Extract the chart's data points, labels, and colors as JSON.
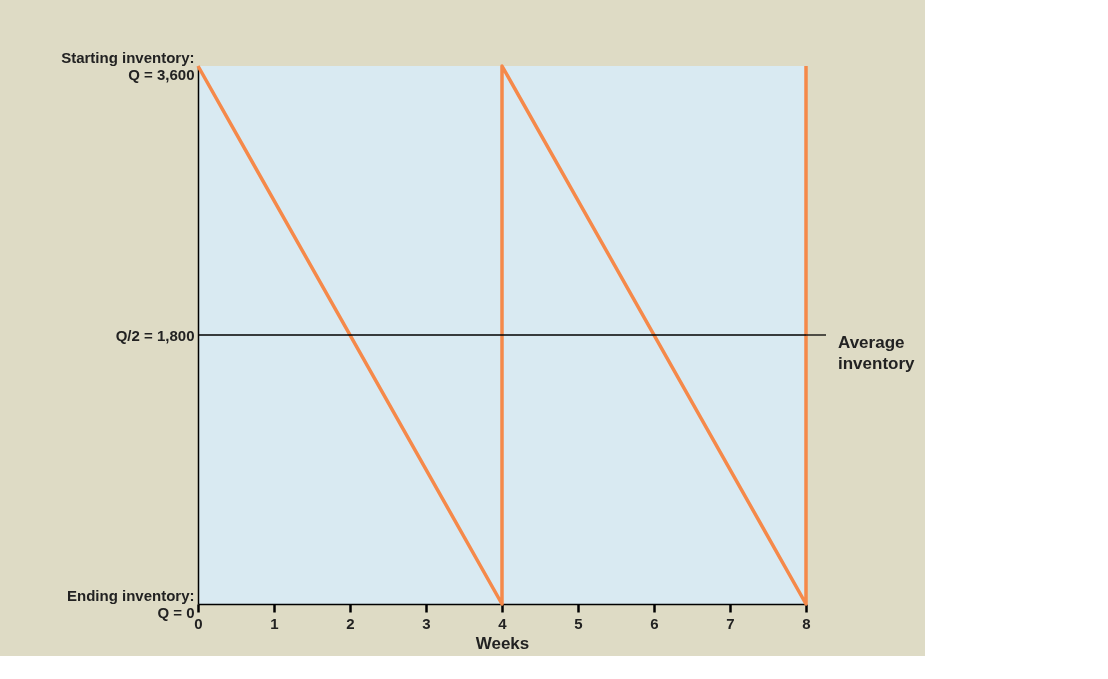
{
  "chart_data": {
    "type": "line",
    "x": [
      0,
      4,
      4,
      8,
      8
    ],
    "series": [
      {
        "color": "#f5894a",
        "values": [
          3600,
          0,
          3600,
          0,
          3600
        ]
      }
    ],
    "xlabel": "Weeks",
    "xlim": [
      0,
      8
    ],
    "xticks": [
      0,
      1,
      2,
      3,
      4,
      5,
      6,
      7,
      8
    ],
    "ylim": [
      0,
      3600
    ],
    "yticks": [
      {
        "value": 0,
        "label": "Ending inventory:\nQ = 0"
      },
      {
        "value": 1800,
        "label": "Q/2 = 1,800"
      },
      {
        "value": 3600,
        "label": "Starting inventory:\nQ = 3,600"
      }
    ],
    "ref_lines": [
      {
        "axis": "y",
        "value": 1800,
        "label": "Average\ninventory",
        "color": "#000000"
      }
    ],
    "grid": false,
    "marker": "none",
    "line_style": "solid"
  }
}
